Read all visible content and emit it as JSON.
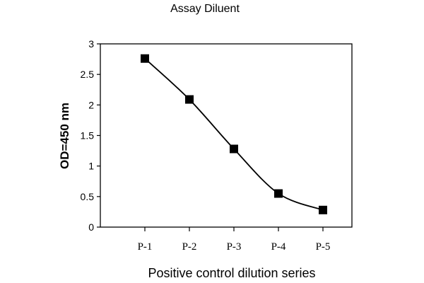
{
  "chart_data": {
    "type": "line",
    "title": "Assay Diluent",
    "xlabel": "Positive control dilution series",
    "ylabel": "OD=450 nm",
    "categories": [
      "P-1",
      "P-2",
      "P-3",
      "P-4",
      "P-5"
    ],
    "values": [
      2.76,
      2.09,
      1.28,
      0.55,
      0.28
    ],
    "ylim": [
      0,
      3
    ],
    "yticks": [
      "0",
      "0.5",
      "1",
      "1.5",
      "2",
      "2.5",
      "3"
    ],
    "grid": false,
    "legend": "none",
    "line_color": "#000000",
    "marker": "square"
  }
}
